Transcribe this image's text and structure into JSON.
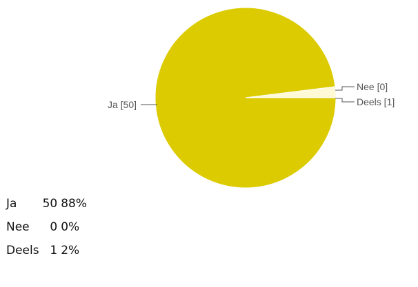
{
  "chart_data": {
    "type": "pie",
    "slices": [
      {
        "label": "Ja",
        "value": 50,
        "display_label": "Ja [50]",
        "color": "#DCCB00"
      },
      {
        "label": "Nee",
        "value": 0,
        "display_label": "Nee [0]",
        "color": "#F2E9A8"
      },
      {
        "label": "Deels",
        "value": 1,
        "display_label": "Deels [1]",
        "color": "#FFF9D6"
      }
    ]
  },
  "summary": {
    "rows": [
      {
        "label": "Ja",
        "count": "50",
        "percent": "88%"
      },
      {
        "label": "Nee",
        "count": "0",
        "percent": "0%"
      },
      {
        "label": "Deels",
        "count": "1",
        "percent": "2%"
      }
    ]
  }
}
